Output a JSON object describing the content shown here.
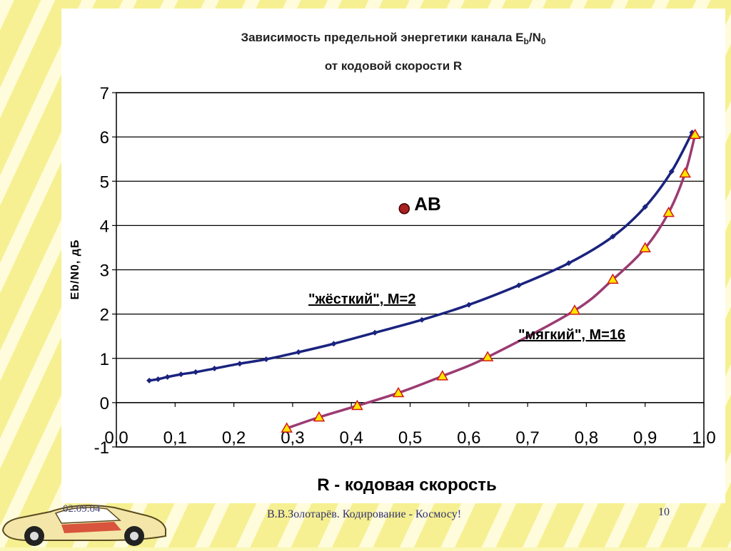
{
  "slide": {
    "date": "02.09.04",
    "author": "В.В.Золотарёв.  Кодирование - Космосу!",
    "page": "10"
  },
  "icons": {
    "car": "sports-car-icon"
  },
  "colors": {
    "hard_curve": "#1a237e",
    "soft_curve": "#9b3b72",
    "triangle_fill": "#ffe600",
    "triangle_stroke": "#d11a1a",
    "point_ab": "#a82020"
  },
  "chart_data": {
    "type": "line",
    "title_line1": "Зависимость  предельной энергетики канала E",
    "title_sub1": "b",
    "title_mid": "/N",
    "title_sub2": "0",
    "title_line2": "от кодовой скорости R",
    "xlabel": "R  -   кодовая   скорость",
    "ylabel": "Eb/N0,  дБ",
    "xlim": [
      0.0,
      1.0
    ],
    "ylim": [
      -1,
      7
    ],
    "x_ticks": [
      "0,0",
      "0,1",
      "0,2",
      "0,3",
      "0,4",
      "0,5",
      "0,6",
      "0,7",
      "0,8",
      "0,9",
      "1,0"
    ],
    "y_ticks": [
      "-1",
      "0",
      "1",
      "2",
      "3",
      "4",
      "5",
      "6",
      "7"
    ],
    "grid": "horizontal",
    "series": [
      {
        "name": "\"жёсткий\", M=2",
        "marker": "diamond",
        "x": [
          0.056,
          0.071,
          0.087,
          0.11,
          0.135,
          0.167,
          0.21,
          0.255,
          0.31,
          0.37,
          0.44,
          0.52,
          0.6,
          0.685,
          0.77,
          0.845,
          0.9,
          0.945,
          0.98
        ],
        "y": [
          0.5,
          0.53,
          0.58,
          0.64,
          0.69,
          0.77,
          0.88,
          0.98,
          1.14,
          1.33,
          1.58,
          1.87,
          2.21,
          2.65,
          3.15,
          3.75,
          4.42,
          5.22,
          6.1
        ]
      },
      {
        "name": "\"мягкий\", M=16",
        "marker": "triangle",
        "x": [
          0.29,
          0.345,
          0.41,
          0.48,
          0.555,
          0.632,
          0.78,
          0.845,
          0.9,
          0.94,
          0.968,
          0.985
        ],
        "y": [
          -0.58,
          -0.33,
          -0.07,
          0.22,
          0.6,
          1.03,
          2.08,
          2.78,
          3.49,
          4.29,
          5.18,
          6.05
        ]
      }
    ],
    "annotations": [
      {
        "label": "AB",
        "x": 0.49,
        "y": 4.38
      }
    ]
  }
}
